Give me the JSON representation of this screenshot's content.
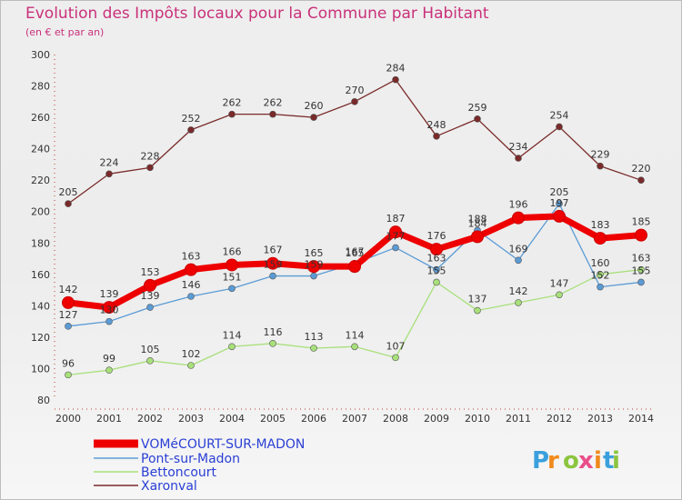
{
  "chart_data": {
    "type": "line",
    "title": "Evolution des Impôts locaux pour la Commune par Habitant",
    "subtitle": "(en € et par an)",
    "x": [
      2000,
      2001,
      2002,
      2003,
      2004,
      2005,
      2006,
      2007,
      2008,
      2009,
      2010,
      2011,
      2012,
      2013,
      2014
    ],
    "ylim": [
      80,
      300
    ],
    "yticks": [
      80,
      100,
      120,
      140,
      160,
      180,
      200,
      220,
      240,
      260,
      280,
      300
    ],
    "grid": false,
    "legend_position": "bottom-left",
    "series": [
      {
        "name": "Xaronval",
        "color": "#7a2a2a",
        "values": [
          205,
          224,
          228,
          252,
          262,
          262,
          260,
          270,
          284,
          248,
          259,
          234,
          254,
          229,
          220
        ]
      },
      {
        "name": "Bettoncourt",
        "color": "#a8e07a",
        "values": [
          96,
          99,
          105,
          102,
          114,
          116,
          113,
          114,
          107,
          155,
          137,
          142,
          147,
          160,
          163
        ]
      },
      {
        "name": "Pont-sur-Madon",
        "color": "#5b9bd5",
        "values": [
          127,
          130,
          139,
          146,
          151,
          159,
          159,
          167,
          177,
          163,
          188,
          169,
          205,
          152,
          155
        ]
      },
      {
        "name": "VOMéCOURT-SUR-MADON",
        "color": "#ee0000",
        "values": [
          142,
          139,
          153,
          163,
          166,
          167,
          165,
          165,
          187,
          176,
          184,
          196,
          197,
          183,
          185
        ]
      }
    ],
    "legend": [
      "VOMéCOURT-SUR-MADON",
      "Pont-sur-Madon",
      "Bettoncourt",
      "Xaronval"
    ]
  },
  "logo_text": "Proxiti"
}
